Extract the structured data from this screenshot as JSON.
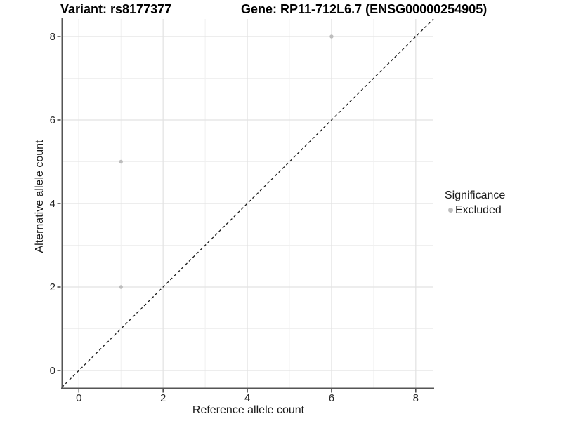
{
  "titles": {
    "left": "Variant: rs8177377",
    "right": "Gene: RP11-712L6.7 (ENSG00000254905)"
  },
  "chart_data": {
    "type": "scatter",
    "title_left": "Variant: rs8177377",
    "title_right": "Gene: RP11-712L6.7 (ENSG00000254905)",
    "xlabel": "Reference allele count",
    "ylabel": "Alternative allele count",
    "xlim": [
      -0.405,
      8.42
    ],
    "ylim": [
      -0.42,
      8.42
    ],
    "x_ticks": [
      0,
      2,
      4,
      6,
      8
    ],
    "y_ticks": [
      0,
      2,
      4,
      6,
      8
    ],
    "x_minor_ticks": [
      1,
      3,
      5,
      7
    ],
    "y_minor_ticks": [
      1,
      3,
      5,
      7
    ],
    "grid": true,
    "series": [
      {
        "name": "Excluded",
        "color": "#bdbdbd",
        "points": [
          [
            1,
            5
          ],
          [
            1,
            2
          ],
          [
            6,
            8
          ]
        ]
      }
    ],
    "reference_line": {
      "type": "identity",
      "style": "dashed",
      "color": "#1a1a1a"
    },
    "legend": {
      "position": "right",
      "title": "Significance",
      "items": [
        {
          "label": "Excluded",
          "color": "#bdbdbd"
        }
      ]
    }
  },
  "colors": {
    "background": "#ffffff",
    "point": "#bdbdbd",
    "grid_major": "#e2e2e2",
    "grid_minor": "#f0f0f0",
    "axis_line": "#555555",
    "tick_mark": "#333333",
    "tick_label": "#262626",
    "dashed_line": "#1a1a1a"
  }
}
